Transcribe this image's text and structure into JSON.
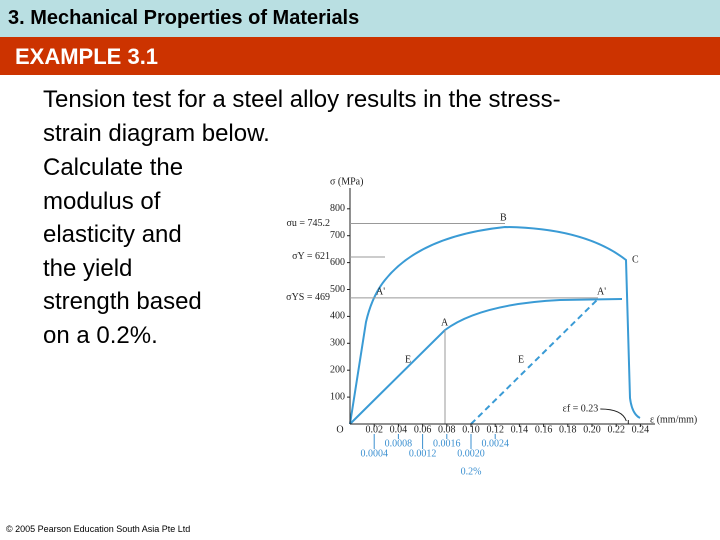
{
  "header": {
    "section": "3. Mechanical Properties of Materials",
    "example": "EXAMPLE 3.1"
  },
  "body": {
    "intro_lines": [
      "Tension test for a steel alloy results in the stress-",
      "strain diagram below."
    ],
    "task_lines": [
      "Calculate the",
      "modulus of",
      "elasticity and",
      "the yield",
      "strength based",
      "on a 0.2%."
    ]
  },
  "diagram": {
    "y_label": "σ (MPa)",
    "x_label": "ε (mm/mm)",
    "origin": "O",
    "xlim": [
      0,
      0.25
    ],
    "ylim": [
      0,
      850
    ],
    "xticks": [
      0.02,
      0.04,
      0.06,
      0.08,
      {
        "value": 0.1,
        "label": "0.10"
      },
      0.12,
      0.14,
      0.16,
      0.18,
      {
        "value": 0.2,
        "label": "0.20"
      },
      0.22,
      0.24
    ],
    "yticks": [
      100,
      200,
      300,
      400,
      500,
      600,
      700,
      800
    ],
    "x2lim": [
      0,
      0.005
    ],
    "x2ticks": [
      0.0004,
      0.0008,
      0.0012,
      0.0016,
      {
        "value": 0.002,
        "label": "0.0020"
      },
      0.0024
    ],
    "x2_note": "0.2%",
    "stress_markers": [
      {
        "label": "σu = 745.2",
        "value": 745.2
      },
      {
        "label": "σY = 621",
        "value": 621
      },
      {
        "label": "σYS = 469",
        "value": 469
      }
    ],
    "strain_marker": {
      "label": "εf = 0.23",
      "value": 0.23
    },
    "point_labels": [
      "B",
      "C",
      "A'",
      "A",
      "A'",
      "E",
      "E"
    ]
  },
  "footer": "© 2005 Pearson Education South Asia Pte Ltd"
}
